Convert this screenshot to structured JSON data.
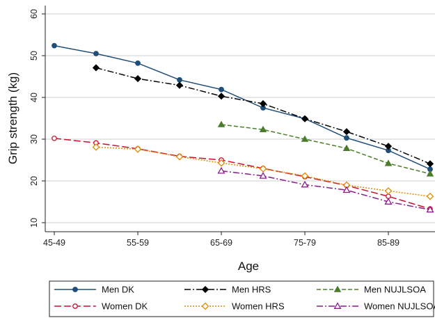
{
  "chart_data": {
    "type": "line",
    "title": "",
    "xlabel": "Age",
    "ylabel": "Grip strength (kg)",
    "x_tick_labels": [
      "45-49",
      "55-59",
      "65-69",
      "75-79",
      "85-89"
    ],
    "x_tick_positions": [
      1,
      3,
      5,
      7,
      9
    ],
    "xlim": [
      1,
      10
    ],
    "ylim": [
      10,
      60
    ],
    "y_ticks": [
      10,
      20,
      30,
      40,
      50,
      60
    ],
    "grid": true,
    "legend_position": "bottom",
    "series": [
      {
        "name": "Men DK",
        "color": "#1f4e79",
        "dash": "solid",
        "marker": "circle",
        "x": [
          1,
          2,
          3,
          4,
          5,
          6,
          7,
          8,
          9,
          10
        ],
        "y": [
          52.4,
          50.5,
          48.2,
          44.2,
          41.9,
          37.5,
          34.9,
          30.3,
          27.3,
          22.8
        ]
      },
      {
        "name": "Men HRS",
        "color": "#000000",
        "dash": "dashdot",
        "marker": "diamond",
        "x": [
          2,
          3,
          4,
          5,
          6,
          7,
          8,
          9,
          10
        ],
        "y": [
          47.1,
          44.5,
          42.9,
          40.3,
          38.5,
          34.9,
          31.8,
          28.3,
          24.1
        ]
      },
      {
        "name": "Men NUJLSOA",
        "color": "#4a7c2a",
        "dash": "dashed",
        "marker": "triangle",
        "x": [
          5,
          6,
          7,
          8,
          9,
          10
        ],
        "y": [
          33.5,
          32.3,
          30.0,
          27.8,
          24.2,
          21.7
        ]
      },
      {
        "name": "Women DK",
        "color": "#c8102e",
        "dash": "longdash",
        "marker": "hollow-circle",
        "x": [
          1,
          2,
          3,
          4,
          5,
          6,
          7,
          8,
          9,
          10
        ],
        "y": [
          30.2,
          29.1,
          27.7,
          25.9,
          25.0,
          23.0,
          21.0,
          18.9,
          16.3,
          13.3
        ]
      },
      {
        "name": "Women HRS",
        "color": "#e08a00",
        "dash": "dotted",
        "marker": "hollow-diamond",
        "x": [
          2,
          3,
          4,
          5,
          6,
          7,
          8,
          9,
          10
        ],
        "y": [
          28.1,
          27.6,
          25.8,
          24.3,
          22.9,
          21.2,
          19.0,
          17.6,
          16.3
        ]
      },
      {
        "name": "Women NUJLSOA",
        "color": "#8b1a8b",
        "dash": "dashdot",
        "marker": "hollow-triangle",
        "x": [
          5,
          6,
          7,
          8,
          9,
          10
        ],
        "y": [
          22.4,
          21.2,
          19.1,
          17.8,
          15.0,
          13.1
        ]
      }
    ]
  }
}
